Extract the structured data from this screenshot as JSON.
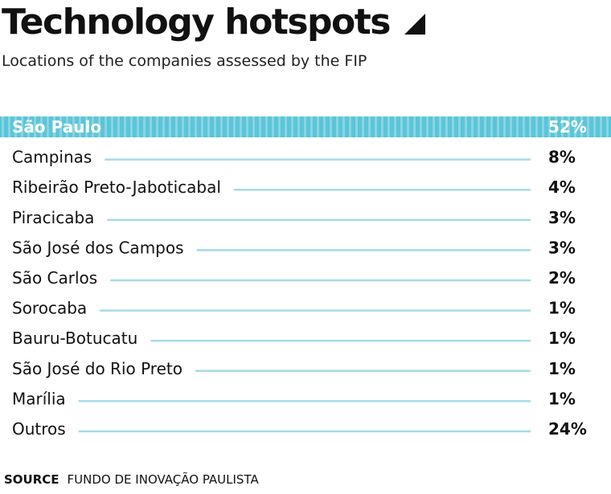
{
  "title": "Technology hotspots",
  "subtitle": "Locations of the companies assessed by the FIP",
  "source_label": "SOURCE",
  "source_text": "FUNDO DE INOVAÇÃO PAULISTA",
  "title_icon": "triangle-corner-icon",
  "colors": {
    "accent": "#5bc5d8",
    "leader": "#a6dbe4",
    "text": "#111111",
    "highlight_text": "#ffffff"
  },
  "chart_data": {
    "type": "table",
    "title": "Technology hotspots",
    "subtitle": "Locations of the companies assessed by the FIP",
    "unit": "%",
    "highlight_index": 0,
    "categories": [
      "São Paulo",
      "Campinas",
      "Ribeirão Preto-Jaboticabal",
      "Piracicaba",
      "São José dos Campos",
      "São Carlos",
      "Sorocaba",
      "Bauru-Botucatu",
      "São José do Rio Preto",
      "Marília",
      "Outros"
    ],
    "labels": [
      "52%",
      "8%",
      "4%",
      "3%",
      "3%",
      "2%",
      "1%",
      "1%",
      "1%",
      "1%",
      "24%"
    ],
    "values": [
      52,
      8,
      4,
      3,
      3,
      2,
      1,
      1,
      1,
      1,
      24
    ]
  }
}
